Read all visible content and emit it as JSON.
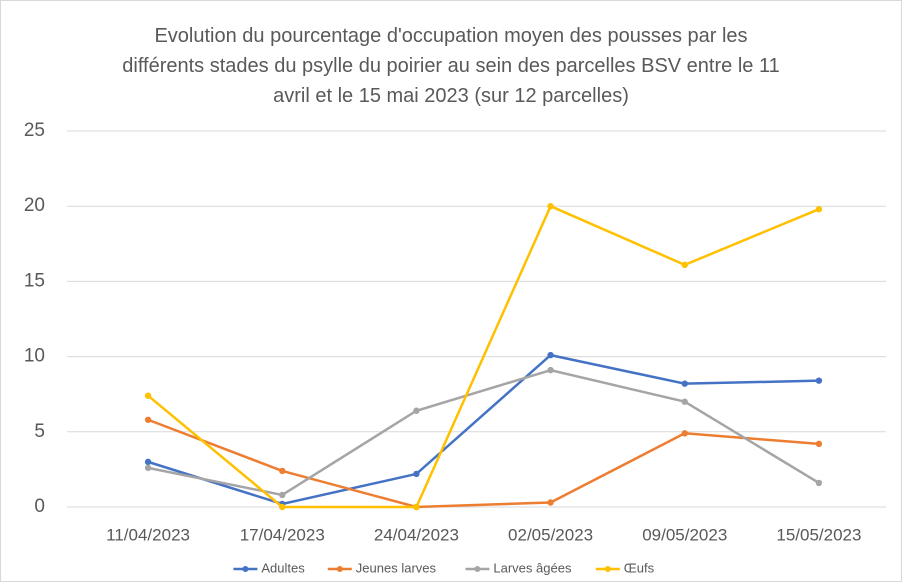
{
  "chart_data": {
    "type": "line",
    "title": "Evolution du pourcentage d'occupation moyen des pousses par les différents stades du psylle du poirier au sein des parcelles BSV entre le 11 avril et le 15 mai 2023 (sur 12 parcelles)",
    "categories": [
      "11/04/2023",
      "17/04/2023",
      "24/04/2023",
      "02/05/2023",
      "09/05/2023",
      "15/05/2023"
    ],
    "series": [
      {
        "name": "Adultes",
        "color": "#4472c4",
        "values": [
          3.0,
          0.2,
          2.2,
          10.1,
          8.2,
          8.4
        ]
      },
      {
        "name": "Jeunes larves",
        "color": "#ed7d31",
        "values": [
          5.8,
          2.4,
          0,
          0.3,
          4.9,
          4.2
        ]
      },
      {
        "name": "Larves âgées",
        "color": "#a5a5a5",
        "values": [
          2.6,
          0.8,
          6.4,
          9.1,
          7.0,
          1.6
        ]
      },
      {
        "name": "Œufs",
        "color": "#ffc000",
        "values": [
          7.4,
          0,
          0,
          20.0,
          16.1,
          19.8
        ]
      }
    ],
    "ylim": [
      0,
      25
    ],
    "yticks": [
      0,
      5,
      10,
      15,
      20,
      25
    ],
    "grid": true,
    "legend": "bottom"
  }
}
